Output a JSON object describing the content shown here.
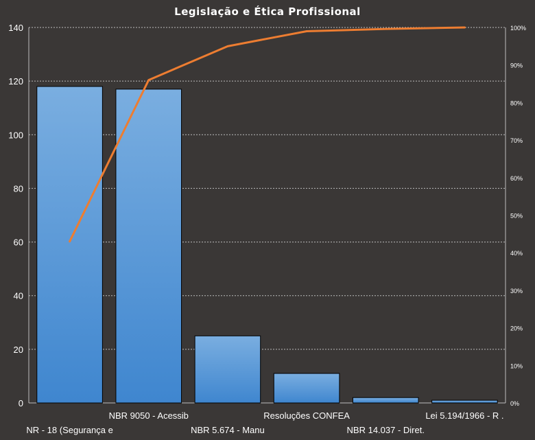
{
  "chart_data": {
    "type": "bar",
    "title": "Legislação e Ética Profissional",
    "categories": [
      "NR - 18 (Segurança e",
      "NBR 9050 - Acessib",
      "NBR 5.674 - Manu",
      "Resoluções CONFEA",
      "NBR 14.037 - Diret.",
      "Lei 5.194/1966 - R ."
    ],
    "series": [
      {
        "values": [
          118,
          117,
          25,
          11,
          2,
          1
        ]
      }
    ],
    "cumulative_percent": [
      43,
      86,
      95,
      99,
      99.6,
      100
    ],
    "ylim": [
      0,
      140
    ],
    "yticks": [
      "0",
      "20",
      "40",
      "60",
      "80",
      "100",
      "120",
      "140"
    ],
    "y2lim": [
      0,
      100
    ],
    "y2ticks": [
      "0%",
      "10%",
      "20%",
      "30%",
      "40%",
      "50%",
      "60%",
      "70%",
      "80%",
      "90%",
      "100%"
    ],
    "grid": true,
    "colors": {
      "bar_top": "#7aaee0",
      "bar_bottom": "#3f86cf",
      "line": "#ed7d31",
      "background": "#3a3736"
    }
  }
}
